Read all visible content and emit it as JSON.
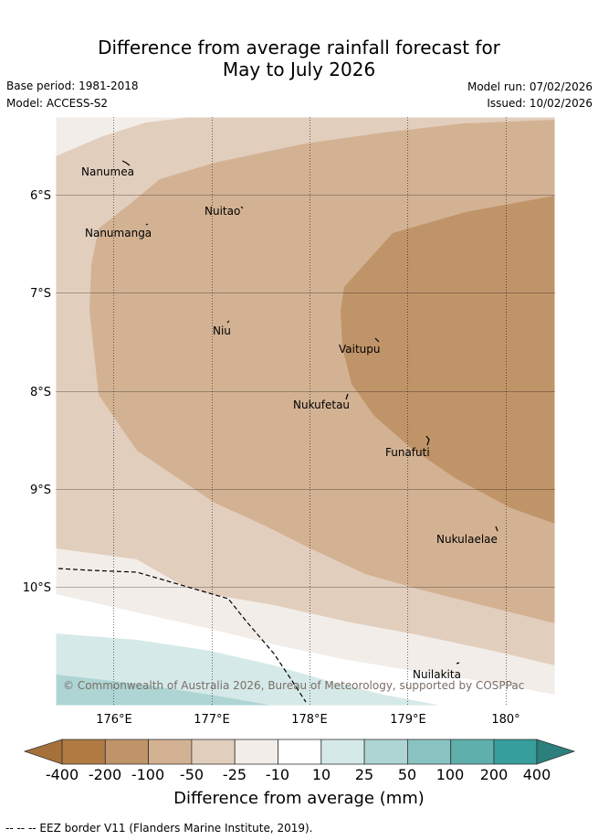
{
  "title_line1": "Difference from average rainfall forecast for",
  "title_line2": "May to July 2026",
  "base_period": "Base period: 1981-2018",
  "model": "Model: ACCESS-S2",
  "model_run": "Model run: 07/02/2026",
  "issued": "Issued: 10/02/2026",
  "copyright": "© Commonwealth of Australia 2026, Bureau of Meteorology, supported by COSPPac",
  "lat_labels": [
    "6°S",
    "7°S",
    "8°S",
    "9°S",
    "10°S"
  ],
  "lon_labels": [
    "176°E",
    "177°E",
    "178°E",
    "179°E",
    "180°"
  ],
  "islands": [
    "Nanumea",
    "Nuitao",
    "Nanumanga",
    "Niu",
    "Vaitupu",
    "Nukufetau",
    "Funafuti",
    "Nukulaelae",
    "Nuilakita"
  ],
  "colorbar": {
    "title": "Difference from average (mm)",
    "labels": [
      "-400",
      "-200",
      "-100",
      "-50",
      "-25",
      "-10",
      "10",
      "25",
      "50",
      "100",
      "200",
      "400"
    ],
    "colors": {
      "lt_-400": "#a5703a",
      "-400_-200": "#b07a42",
      "-200_-100": "#c09469",
      "-100_-50": "#d3b293",
      "-50_-25": "#e2cebd",
      "-25_-10": "#f2ede8",
      "-10_10": "#ffffff",
      "10_25": "#d5e9e8",
      "25_50": "#aed5d4",
      "50_100": "#88c3c1",
      "100_200": "#5fb0ad",
      "200_400": "#369e9b",
      "gt_400": "#2b7f7d"
    }
  },
  "footer": "--  --  -- EEZ border V11 (Flanders Marine Institute, 2019)."
}
